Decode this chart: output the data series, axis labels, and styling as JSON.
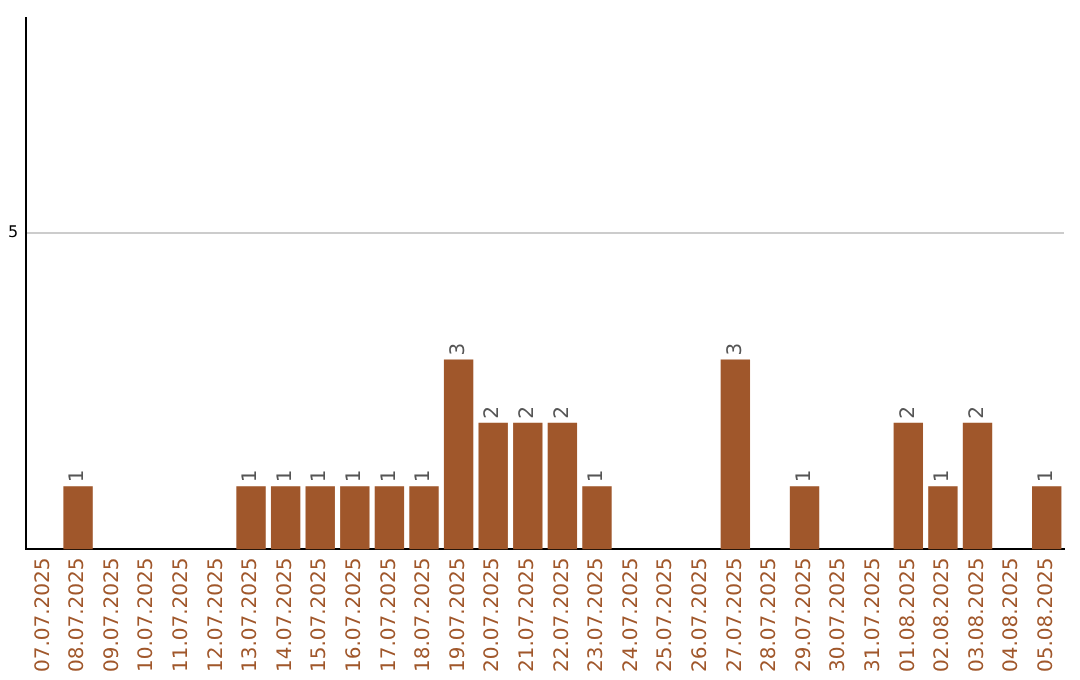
{
  "chart_data": {
    "type": "bar",
    "categories": [
      "07.07.2025",
      "08.07.2025",
      "09.07.2025",
      "10.07.2025",
      "11.07.2025",
      "12.07.2025",
      "13.07.2025",
      "14.07.2025",
      "15.07.2025",
      "16.07.2025",
      "17.07.2025",
      "18.07.2025",
      "19.07.2025",
      "20.07.2025",
      "21.07.2025",
      "22.07.2025",
      "23.07.2025",
      "24.07.2025",
      "25.07.2025",
      "26.07.2025",
      "27.07.2025",
      "28.07.2025",
      "29.07.2025",
      "30.07.2025",
      "31.07.2025",
      "01.08.2025",
      "02.08.2025",
      "03.08.2025",
      "04.08.2025",
      "05.08.2025"
    ],
    "values": [
      0,
      1,
      0,
      0,
      0,
      0,
      1,
      1,
      1,
      1,
      1,
      1,
      3,
      2,
      2,
      2,
      1,
      0,
      0,
      0,
      3,
      0,
      1,
      0,
      0,
      2,
      1,
      2,
      0,
      1
    ],
    "value_labels": [
      null,
      "1",
      null,
      null,
      null,
      null,
      "1",
      "1",
      "1",
      "1",
      "1",
      "1",
      "3",
      "2",
      "2",
      "2",
      "1",
      null,
      null,
      null,
      "3",
      null,
      "1",
      null,
      null,
      "2",
      "1",
      "2",
      null,
      "1"
    ],
    "color": "#a0572b",
    "ylim": [
      0,
      8.4
    ],
    "yticks": [
      5
    ],
    "grid": "y",
    "legend": false
  }
}
